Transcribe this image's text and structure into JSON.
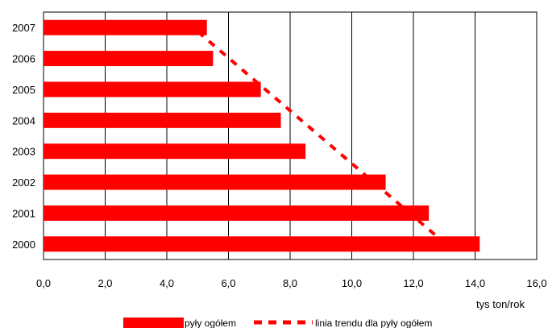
{
  "chart_data": {
    "type": "bar",
    "orientation": "horizontal",
    "categories": [
      "2000",
      "2001",
      "2002",
      "2003",
      "2004",
      "2005",
      "2006",
      "2007"
    ],
    "series": [
      {
        "name": "pyły ogółem",
        "values": [
          14.15,
          12.5,
          11.1,
          8.5,
          7.7,
          7.05,
          5.5,
          5.3
        ],
        "color": "#ff0000"
      }
    ],
    "trendline": {
      "name": "linia trendu dla pyły ogółem",
      "style": "dashed",
      "color": "#ff0000",
      "points": [
        {
          "year": "2000",
          "value": 13.05
        },
        {
          "year": "2007",
          "value": 4.85
        }
      ]
    },
    "xlim": [
      0,
      16
    ],
    "x_ticks": [
      {
        "value": 0,
        "label": "0,0"
      },
      {
        "value": 2,
        "label": "2,0"
      },
      {
        "value": 4,
        "label": "4,0"
      },
      {
        "value": 6,
        "label": "6,0"
      },
      {
        "value": 8,
        "label": "8,0"
      },
      {
        "value": 10,
        "label": "10,0"
      },
      {
        "value": 12,
        "label": "12,0"
      },
      {
        "value": 14,
        "label": "14,0"
      },
      {
        "value": 16,
        "label": "16,0"
      }
    ],
    "xlabel": "tys ton/rok",
    "ylabel": "",
    "title": "",
    "grid": "vertical",
    "legend_position": "bottom"
  }
}
